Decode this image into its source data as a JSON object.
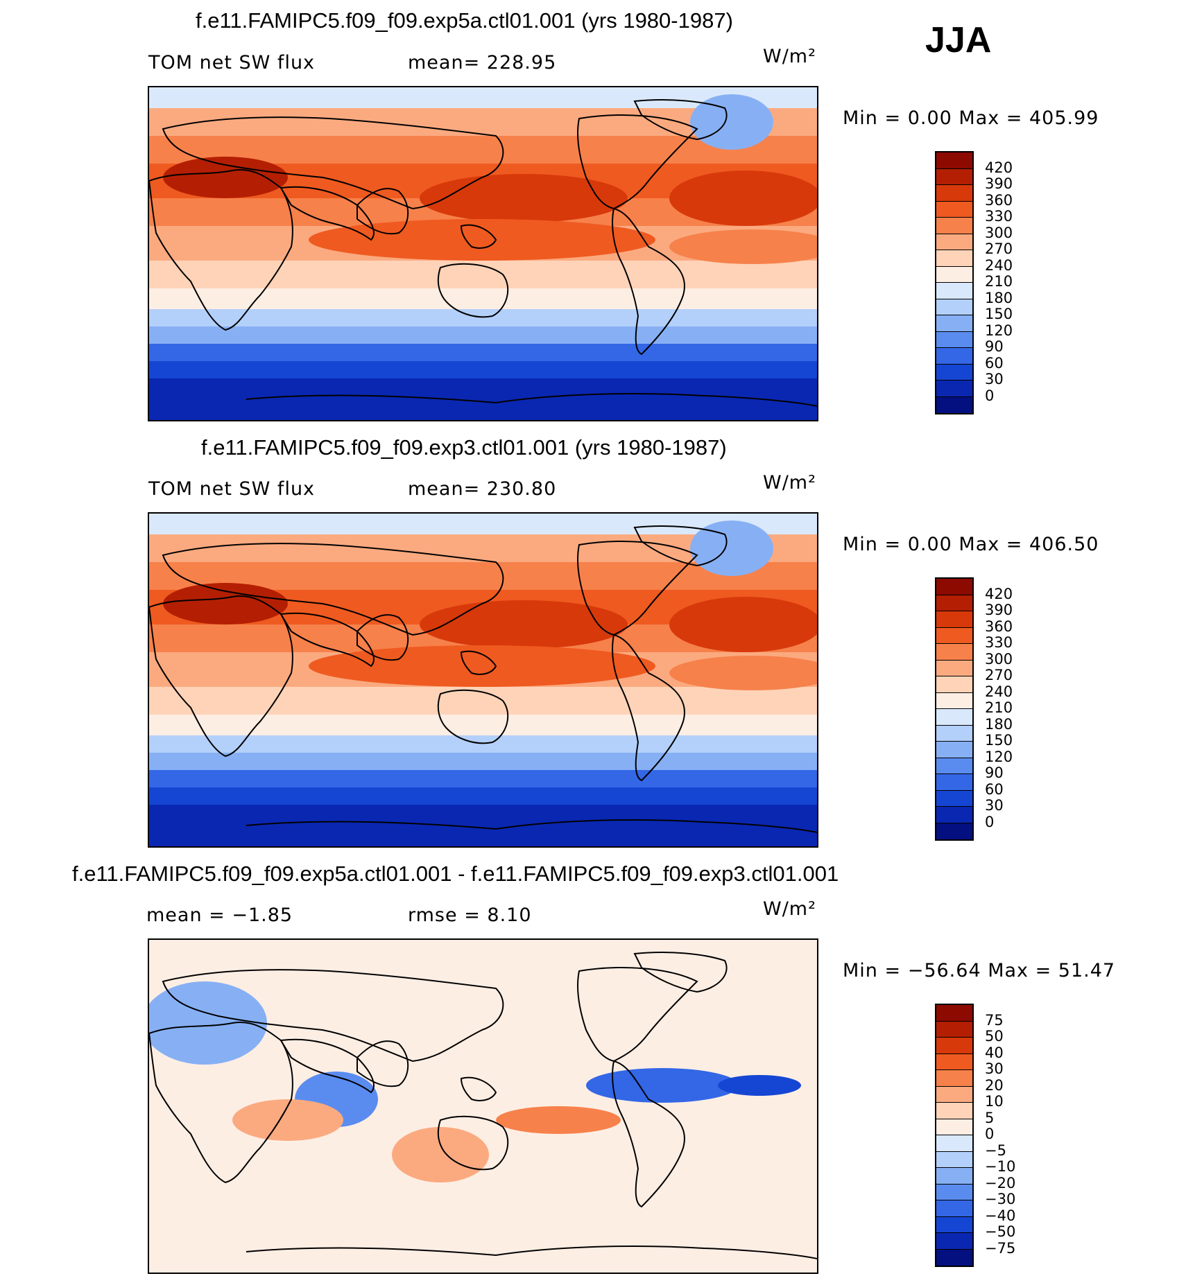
{
  "season": "JJA",
  "chart_data": [
    {
      "type": "heatmap",
      "title": "f.e11.FAMIPC5.f09_f09.exp5a.ctl01.001 (yrs 1980-1987)",
      "left_label": "TOM net SW flux",
      "stat_label": "mean= 228.95",
      "units": "W/m²",
      "minmax": "Min =    0.00 Max = 405.99",
      "min": 0.0,
      "max": 405.99,
      "mean": 228.95,
      "levels": [
        "420",
        "390",
        "360",
        "330",
        "300",
        "270",
        "240",
        "210",
        "180",
        "150",
        "120",
        "90",
        "60",
        "30",
        "0"
      ],
      "colors": [
        "#8c0a00",
        "#b41f03",
        "#d8390a",
        "#ef5a20",
        "#f7814b",
        "#fbaa80",
        "#fed3b8",
        "#fdeee4",
        "#d9e9fb",
        "#b3d0fa",
        "#87b0f4",
        "#5a8cf0",
        "#3367e6",
        "#1546d3",
        "#0a27b2",
        "#040f80"
      ]
    },
    {
      "type": "heatmap",
      "title": "f.e11.FAMIPC5.f09_f09.exp3.ctl01.001 (yrs 1980-1987)",
      "left_label": "TOM net SW flux",
      "stat_label": "mean= 230.80",
      "units": "W/m²",
      "minmax": "Min =    0.00 Max = 406.50",
      "min": 0.0,
      "max": 406.5,
      "mean": 230.8,
      "levels": [
        "420",
        "390",
        "360",
        "330",
        "300",
        "270",
        "240",
        "210",
        "180",
        "150",
        "120",
        "90",
        "60",
        "30",
        "0"
      ],
      "colors": [
        "#8c0a00",
        "#b41f03",
        "#d8390a",
        "#ef5a20",
        "#f7814b",
        "#fbaa80",
        "#fed3b8",
        "#fdeee4",
        "#d9e9fb",
        "#b3d0fa",
        "#87b0f4",
        "#5a8cf0",
        "#3367e6",
        "#1546d3",
        "#0a27b2",
        "#040f80"
      ]
    },
    {
      "type": "heatmap",
      "title": "f.e11.FAMIPC5.f09_f09.exp5a.ctl01.001 - f.e11.FAMIPC5.f09_f09.exp3.ctl01.001",
      "left_label": "mean =   −1.85",
      "stat_label": "rmse =    8.10",
      "units": "W/m²",
      "minmax": "Min = −56.64 Max =  51.47",
      "min": -56.64,
      "max": 51.47,
      "mean": -1.85,
      "rmse": 8.1,
      "levels": [
        "75",
        "50",
        "40",
        "30",
        "20",
        "10",
        "5",
        "0",
        "−5",
        "−10",
        "−20",
        "−30",
        "−40",
        "−50",
        "−75"
      ],
      "colors": [
        "#8c0a00",
        "#b41f03",
        "#d8390a",
        "#ef5a20",
        "#f7814b",
        "#fbaa80",
        "#fed3b8",
        "#fdeee4",
        "#d9e9fb",
        "#b3d0fa",
        "#87b0f4",
        "#5a8cf0",
        "#3367e6",
        "#1546d3",
        "#0a27b2",
        "#040f80"
      ]
    }
  ]
}
